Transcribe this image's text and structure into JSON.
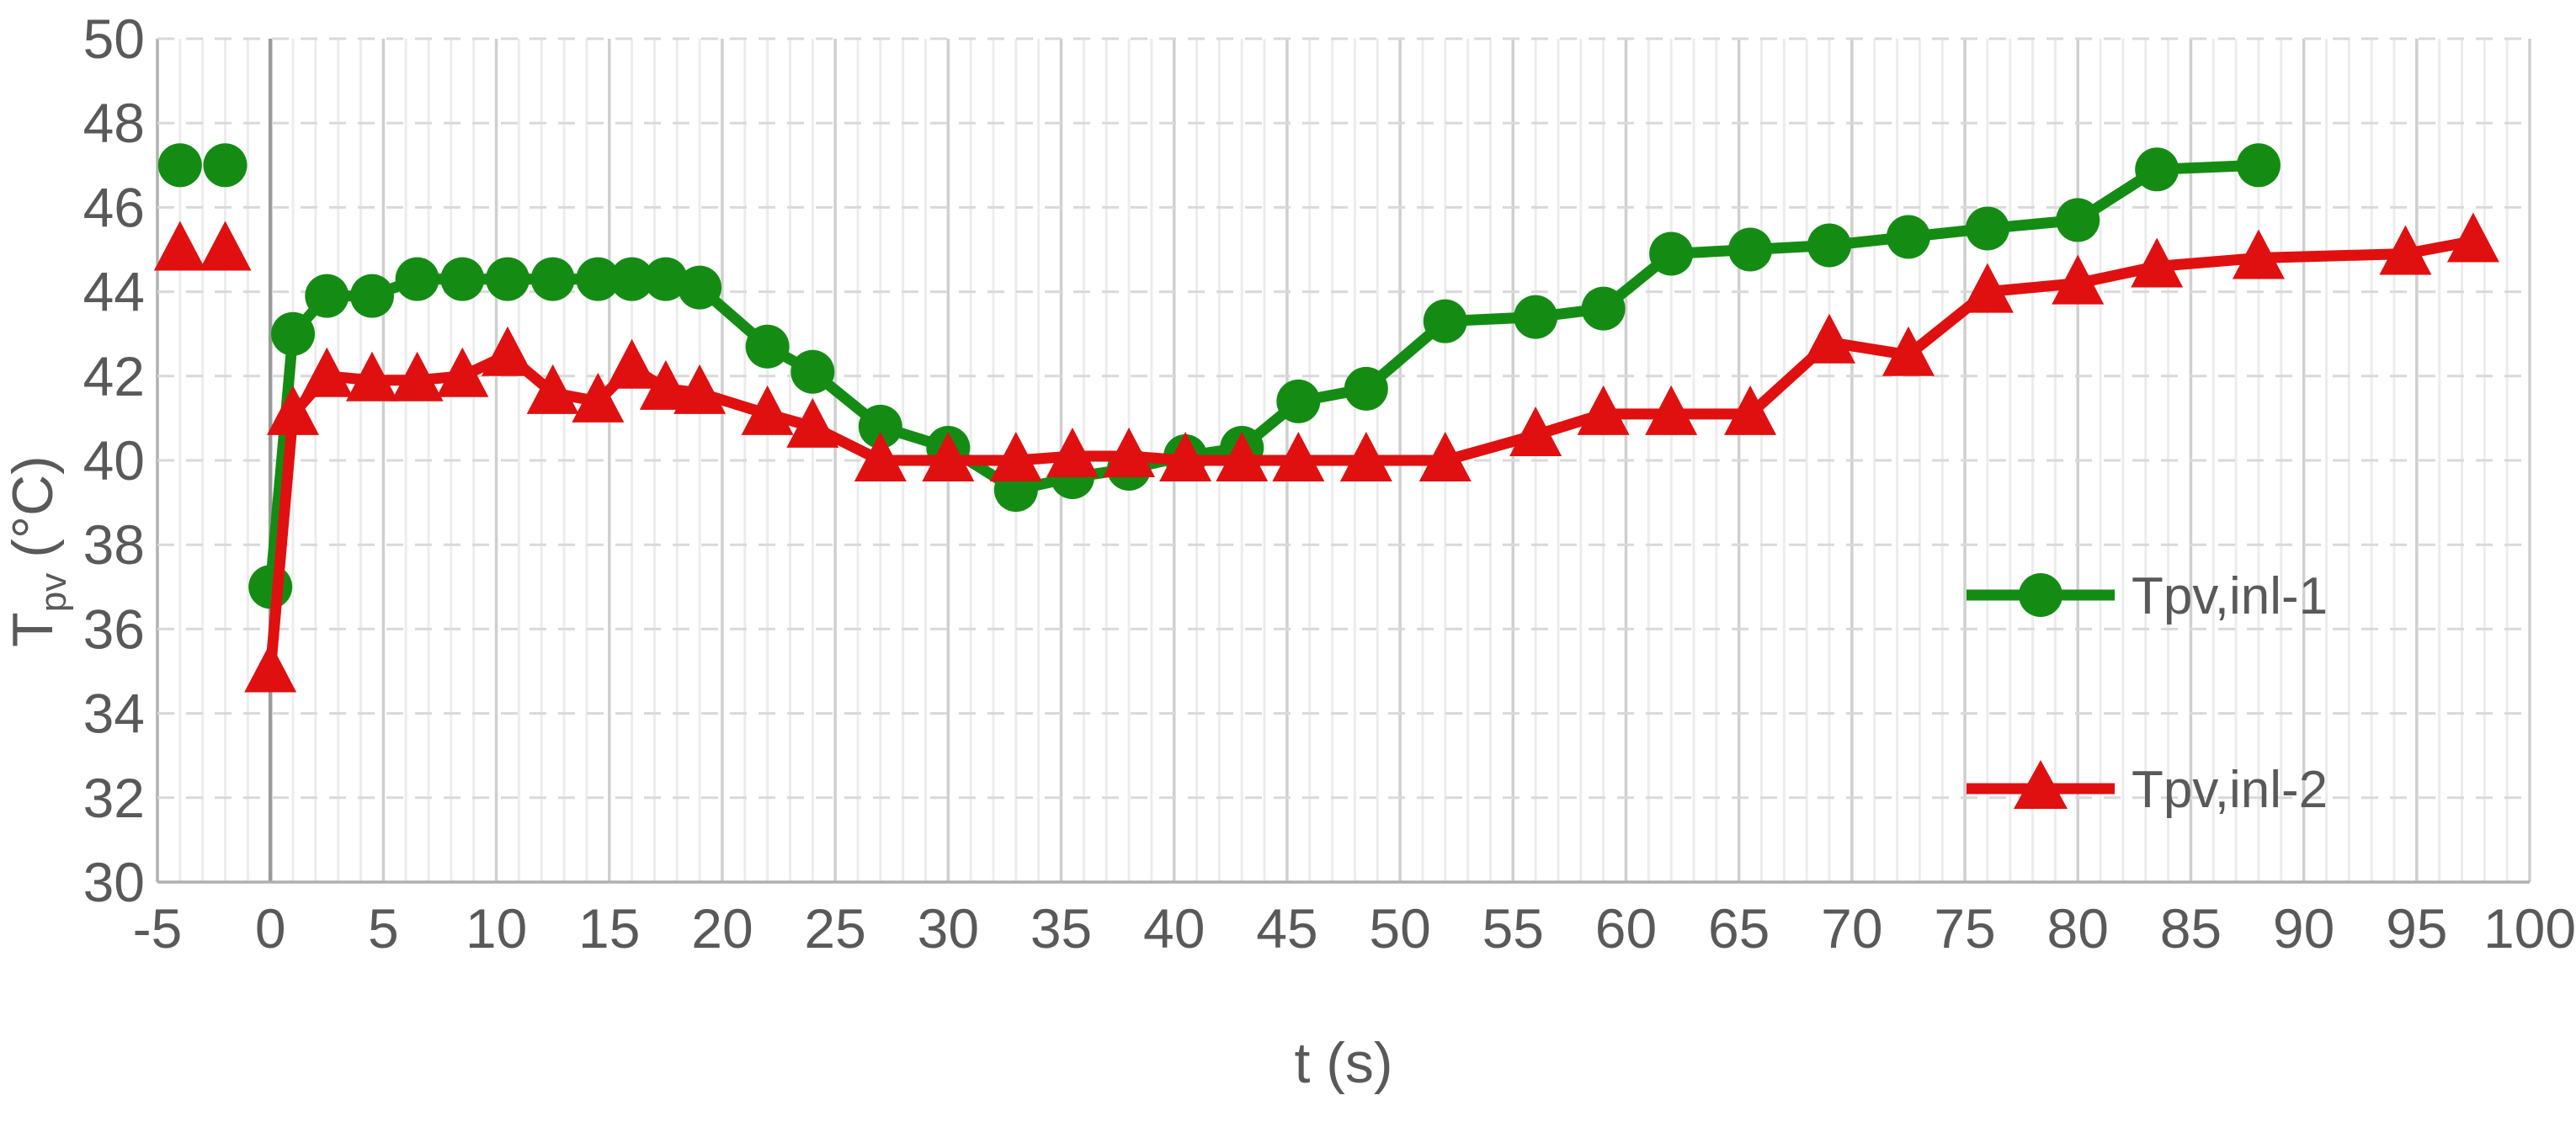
{
  "chart_data": {
    "type": "line",
    "xlabel": "t (s)",
    "ylabel": "Tpv (°C)",
    "ylabel_parts": {
      "main": "T",
      "sub": "pv",
      "unit": "(°C)"
    },
    "xlim": [
      -5,
      100
    ],
    "ylim": [
      30,
      50
    ],
    "x_ticks": [
      -5,
      0,
      5,
      10,
      15,
      20,
      25,
      30,
      35,
      40,
      45,
      50,
      55,
      60,
      65,
      70,
      75,
      80,
      85,
      90,
      95,
      100
    ],
    "y_ticks": [
      30,
      32,
      34,
      36,
      38,
      40,
      42,
      44,
      46,
      48,
      50
    ],
    "minor_x_step": 1,
    "grid": true,
    "legend_position": "right-middle",
    "colors": {
      "series1": "#148C14",
      "series2": "#E01010",
      "text": "#595959",
      "grid_minor": "#ececec",
      "grid_major": "#cfcfcf",
      "grid_h_dashed": "#d9d9d9",
      "axis_line": "#b0b0b0",
      "zero_line": "#9a9a9a"
    },
    "series": [
      {
        "name": "Tpv,inl-1",
        "marker": "circle",
        "color_key": "series1",
        "isolated_points": [
          [
            -4,
            47
          ],
          [
            -2,
            47
          ]
        ],
        "points": [
          [
            0,
            37
          ],
          [
            1,
            43
          ],
          [
            2.5,
            43.9
          ],
          [
            4.5,
            43.9
          ],
          [
            6.5,
            44.3
          ],
          [
            8.5,
            44.3
          ],
          [
            10.5,
            44.3
          ],
          [
            12.5,
            44.3
          ],
          [
            14.5,
            44.3
          ],
          [
            16,
            44.3
          ],
          [
            17.5,
            44.3
          ],
          [
            19,
            44.1
          ],
          [
            22,
            42.7
          ],
          [
            24,
            42.1
          ],
          [
            27,
            40.8
          ],
          [
            30,
            40.3
          ],
          [
            33,
            39.3
          ],
          [
            35.5,
            39.6
          ],
          [
            38,
            39.8
          ],
          [
            40.5,
            40.1
          ],
          [
            43,
            40.3
          ],
          [
            45.5,
            41.4
          ],
          [
            48.5,
            41.7
          ],
          [
            52,
            43.3
          ],
          [
            56,
            43.4
          ],
          [
            59,
            43.6
          ],
          [
            62,
            44.9
          ],
          [
            65.5,
            45
          ],
          [
            69,
            45.1
          ],
          [
            72.5,
            45.3
          ],
          [
            76,
            45.5
          ],
          [
            80,
            45.7
          ],
          [
            83.5,
            46.9
          ],
          [
            88,
            47
          ]
        ]
      },
      {
        "name": "Tpv,inl-2",
        "marker": "triangle",
        "color_key": "series2",
        "isolated_points": [
          [
            -4,
            45
          ],
          [
            -2,
            45
          ]
        ],
        "points": [
          [
            0,
            35
          ],
          [
            1,
            41.1
          ],
          [
            2.5,
            42
          ],
          [
            4.5,
            41.9
          ],
          [
            6.5,
            41.9
          ],
          [
            8.5,
            42
          ],
          [
            10.5,
            42.5
          ],
          [
            12.5,
            41.6
          ],
          [
            14.5,
            41.4
          ],
          [
            16,
            42.2
          ],
          [
            17.5,
            41.7
          ],
          [
            19,
            41.6
          ],
          [
            22,
            41.1
          ],
          [
            24,
            40.8
          ],
          [
            27,
            40
          ],
          [
            30,
            40
          ],
          [
            33,
            40
          ],
          [
            35.5,
            40.1
          ],
          [
            38,
            40.1
          ],
          [
            40.5,
            40
          ],
          [
            43,
            40
          ],
          [
            45.5,
            40
          ],
          [
            48.5,
            40
          ],
          [
            52,
            40
          ],
          [
            56,
            40.6
          ],
          [
            59,
            41.1
          ],
          [
            62,
            41.1
          ],
          [
            65.5,
            41.1
          ],
          [
            69,
            42.8
          ],
          [
            72.5,
            42.5
          ],
          [
            76,
            44
          ],
          [
            80,
            44.2
          ],
          [
            83.5,
            44.6
          ],
          [
            88,
            44.8
          ],
          [
            94.5,
            44.9
          ],
          [
            97.5,
            45.2
          ]
        ]
      }
    ]
  }
}
